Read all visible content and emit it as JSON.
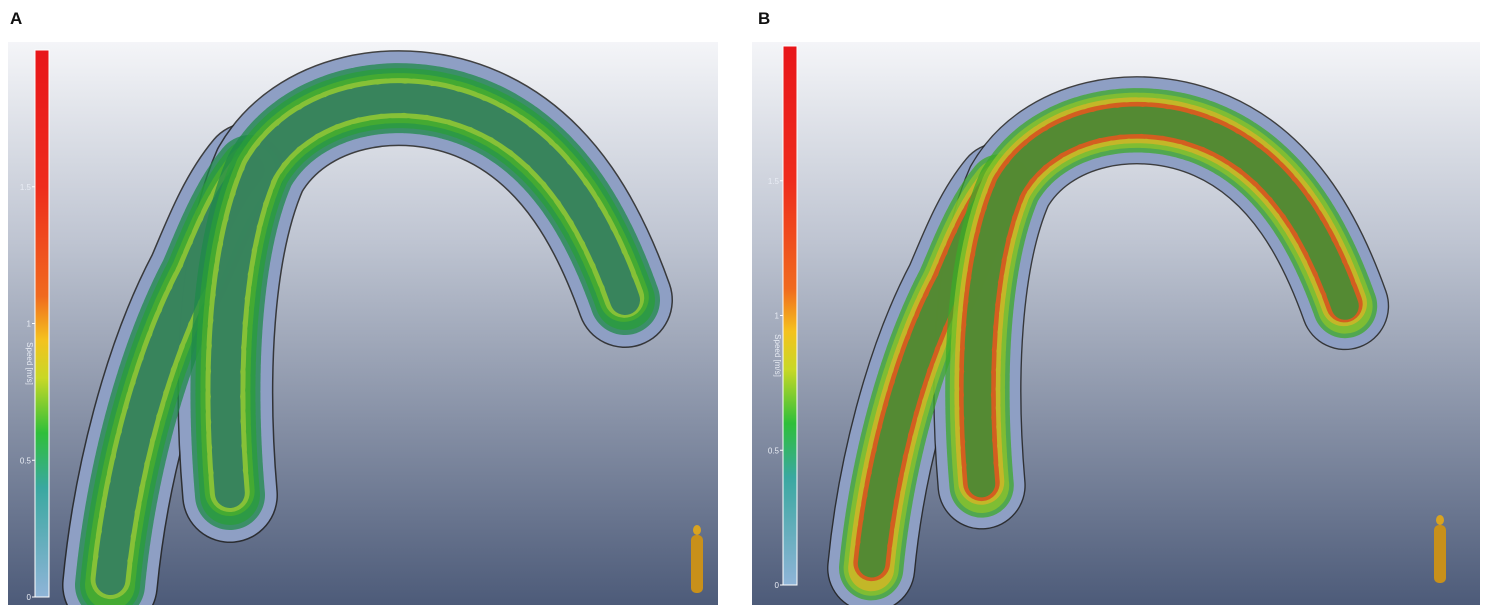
{
  "panels": [
    {
      "label": "A",
      "colorbar": {
        "title": "Speed [m/s]",
        "range": [
          0,
          2
        ],
        "ticks": [
          0,
          0.5,
          1,
          1.5
        ]
      }
    },
    {
      "label": "B",
      "colorbar": {
        "title": "Speed [m/s]",
        "range": [
          0,
          2
        ],
        "ticks": [
          0,
          0.5,
          1,
          1.5
        ]
      }
    }
  ]
}
